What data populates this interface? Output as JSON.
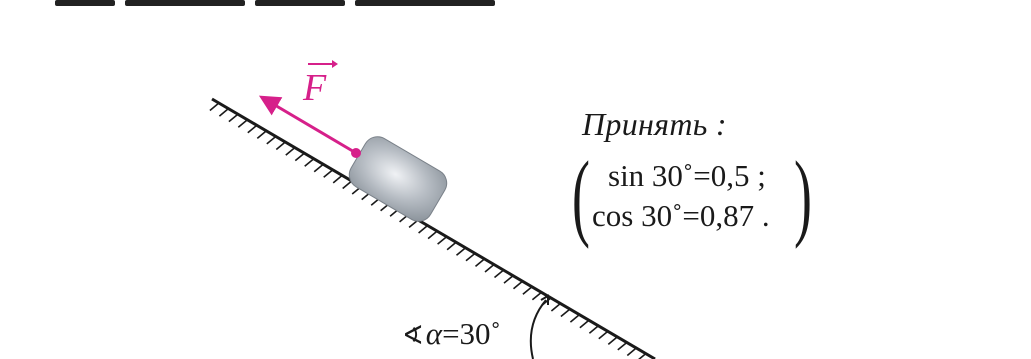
{
  "figure": {
    "force_label": "F",
    "note": {
      "title": "Принять :",
      "bracket_open": "(",
      "bracket_close": ")",
      "line1": "sin 30˚=0,5 ;",
      "line2": "cos 30˚=0,87 ."
    },
    "angle": {
      "symbol": "∢",
      "text_alpha": "α",
      "text_value": "=30˚"
    },
    "colors": {
      "force": "#d6208a",
      "block_light": "#f0f2f5",
      "block_dark": "#8c949c",
      "line": "#1a1a1a"
    }
  }
}
